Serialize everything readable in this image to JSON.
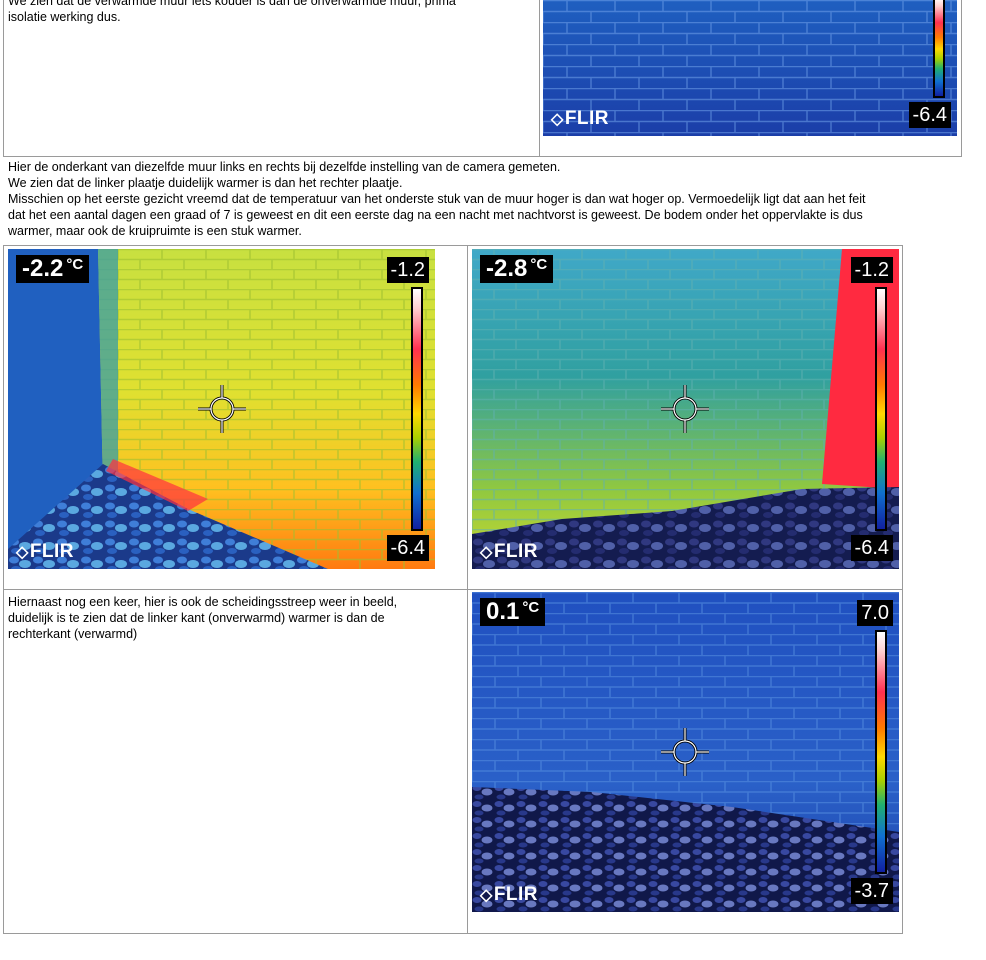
{
  "sections": {
    "top": {
      "text_lines": [
        "We zien dat de verwarmde muur iets kouder is  dan de onverwarmde muur, prima",
        "isolatie werking dus."
      ],
      "image": {
        "scale_min": "-6.4",
        "logo": "FLIR"
      }
    },
    "middle": {
      "paragraph_lines": [
        "Hier de onderkant van diezelfde muur links en rechts bij  dezelfde instelling van de camera gemeten.",
        "We zien dat de linker plaatje duidelijk warmer is  dan het rechter plaatje.",
        "Misschien  op het eerste gezicht vreemd dat de temperatuur van het onderste stuk van de muur hoger is dan wat hoger op. Vermoedelijk ligt dat aan  het feit",
        "dat het een aantal dagen een graad of 7  is  geweest en dit een eerste dag na een nacht met nachtvorst is geweest. De bodem onder het oppervlakte is dus",
        "warmer, maar ook de kruipruimte is  een stuk warmer."
      ],
      "left_image": {
        "temperature": "-2.2",
        "unit": "°C",
        "scale_max": "-1.2",
        "scale_min": "-6.4",
        "logo": "FLIR"
      },
      "right_image": {
        "temperature": "-2.8",
        "unit": "°C",
        "scale_max": "-1.2",
        "scale_min": "-6.4",
        "logo": "FLIR"
      }
    },
    "bottom": {
      "text_lines": [
        "Hiernaast nog een keer, hier is ook de scheidingsstreep weer in beeld,",
        "duidelijk is te zien dat de linker kant (onverwarmd) warmer is  dan de",
        "rechterkant (verwarmd)"
      ],
      "image": {
        "temperature": "0.1",
        "unit": "°C",
        "scale_max": "7.0",
        "scale_min": "-3.7",
        "logo": "FLIR"
      }
    }
  }
}
